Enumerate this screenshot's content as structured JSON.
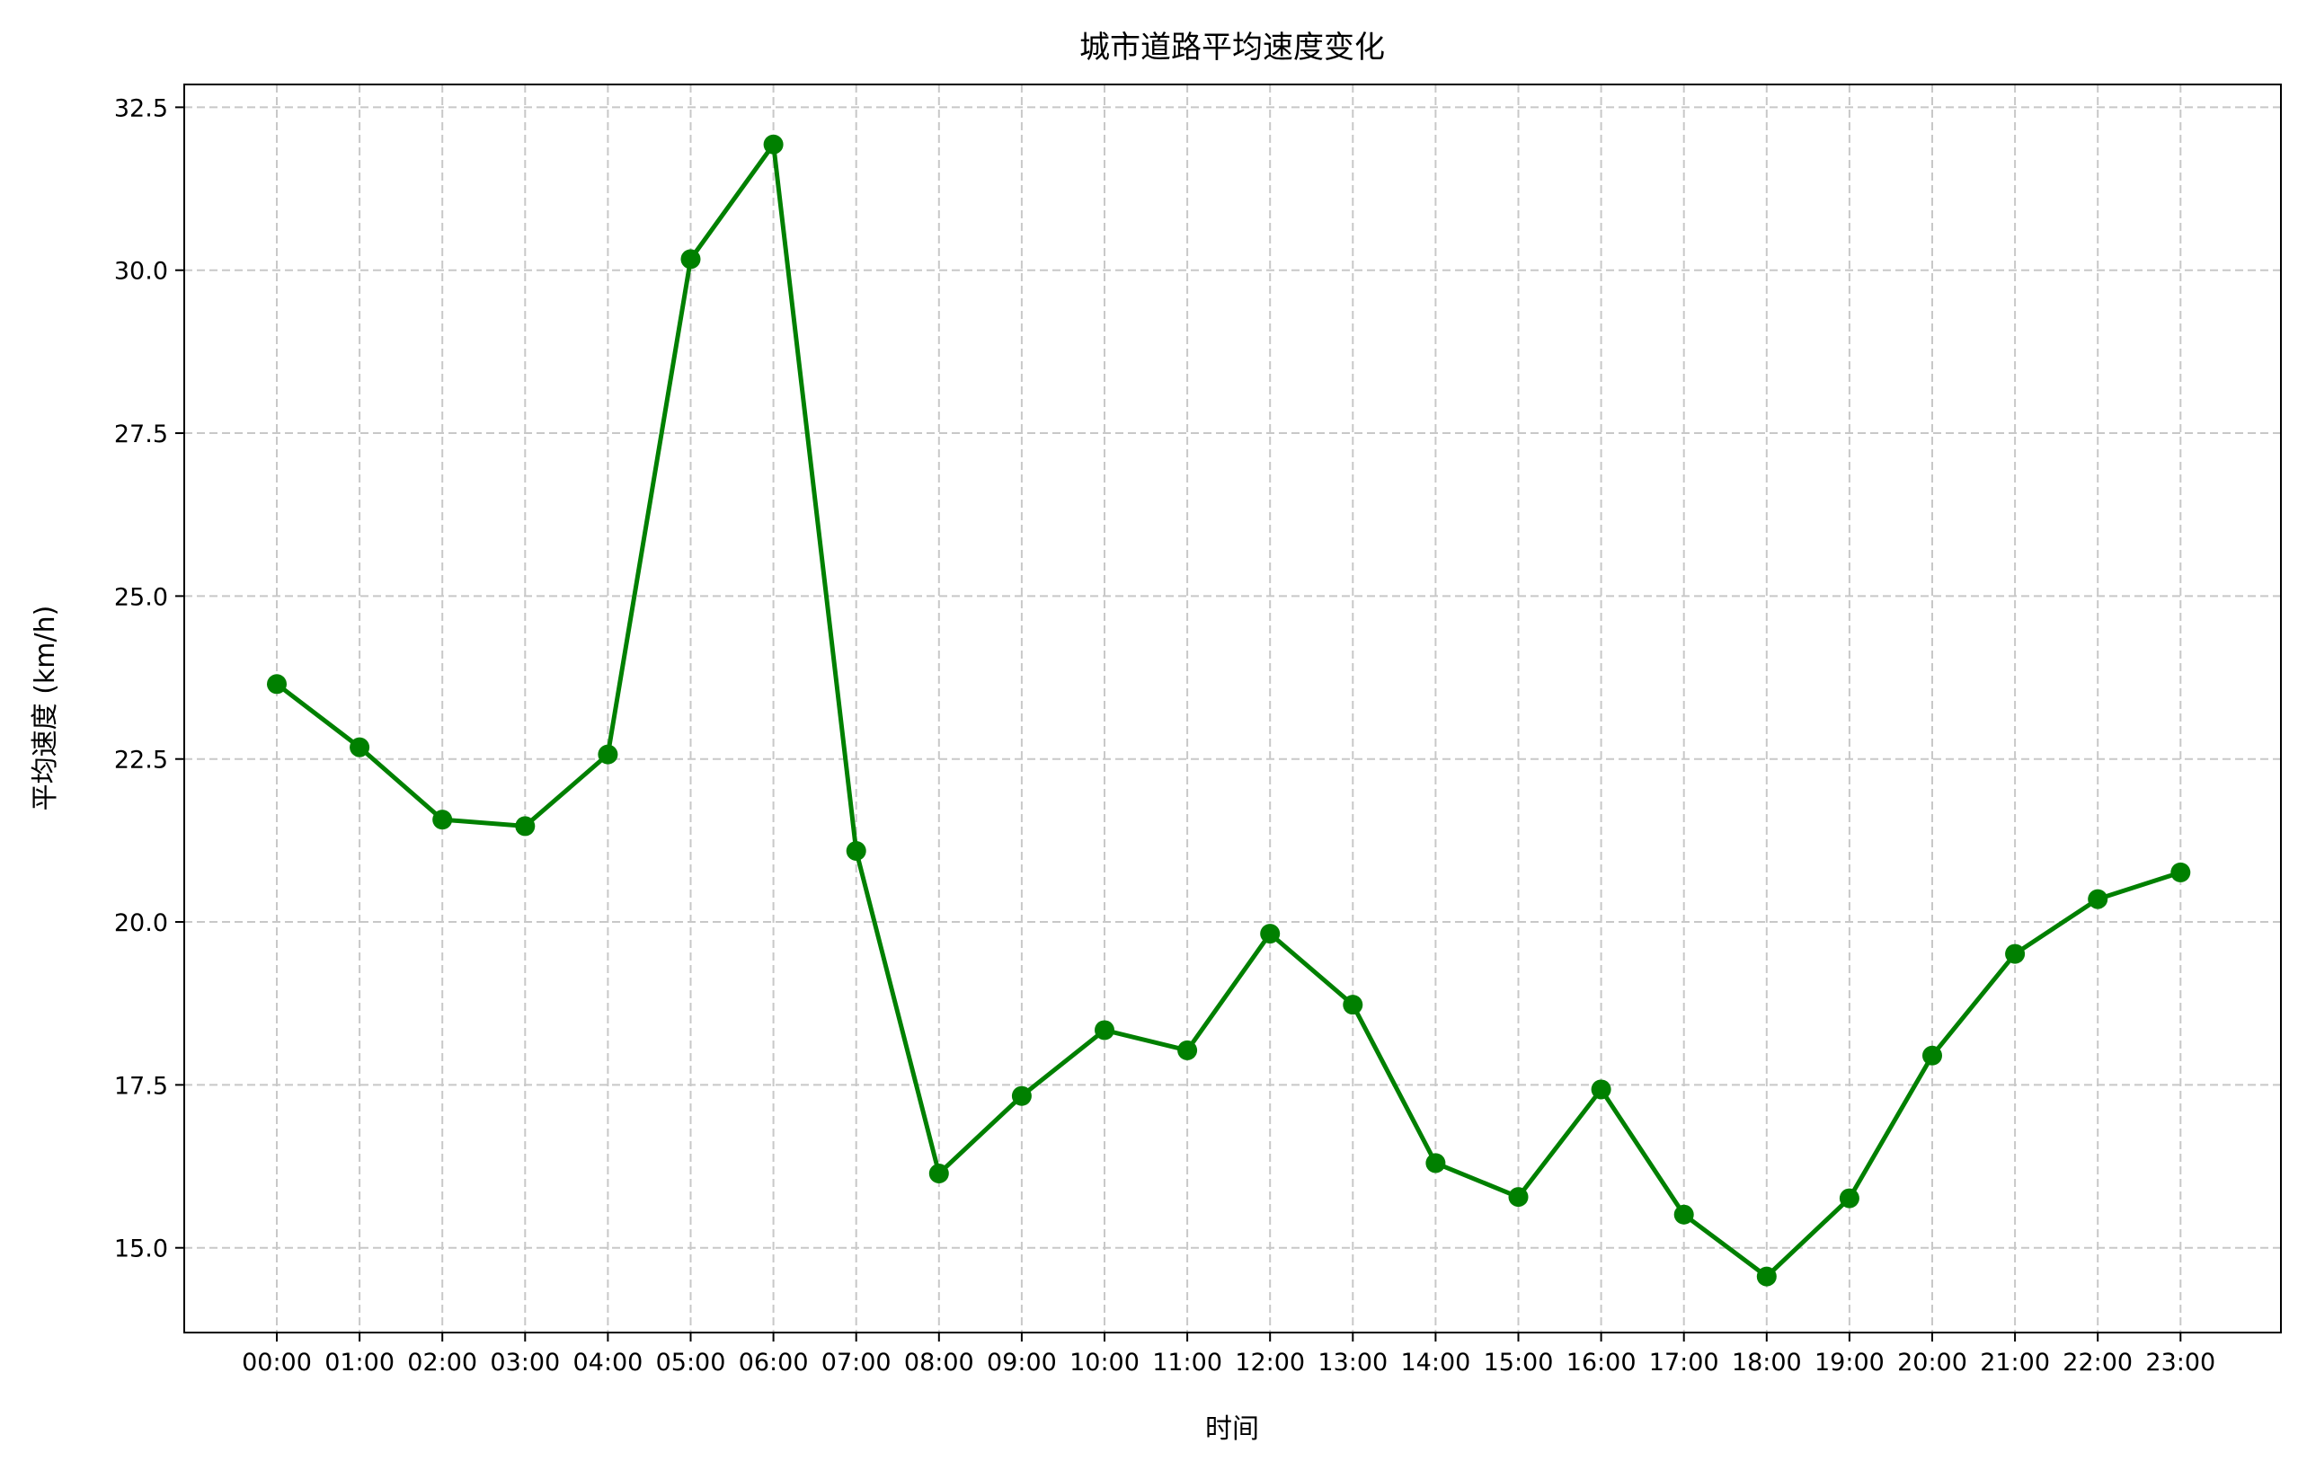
{
  "chart_data": {
    "type": "line",
    "title": "城市道路平均速度变化",
    "xlabel": "时间",
    "ylabel": "平均速度 (km/h)",
    "categories": [
      "00:00",
      "01:00",
      "02:00",
      "03:00",
      "04:00",
      "05:00",
      "06:00",
      "07:00",
      "08:00",
      "09:00",
      "10:00",
      "11:00",
      "12:00",
      "13:00",
      "14:00",
      "15:00",
      "16:00",
      "17:00",
      "18:00",
      "19:00",
      "20:00",
      "21:00",
      "22:00",
      "23:00"
    ],
    "series": [
      {
        "values": [
          23.65,
          22.68,
          21.57,
          21.47,
          22.57,
          30.17,
          31.93,
          21.09,
          16.14,
          17.33,
          18.34,
          18.03,
          19.82,
          18.73,
          16.3,
          15.78,
          17.43,
          15.51,
          14.56,
          15.76,
          17.95,
          19.51,
          20.35,
          20.76
        ],
        "color": "#008000"
      }
    ],
    "yticks": [
      15.0,
      17.5,
      20.0,
      22.5,
      25.0,
      27.5,
      30.0,
      32.5
    ],
    "ylim": [
      13.7,
      32.85
    ],
    "grid": true,
    "grid_color": "#c8c8c8"
  }
}
